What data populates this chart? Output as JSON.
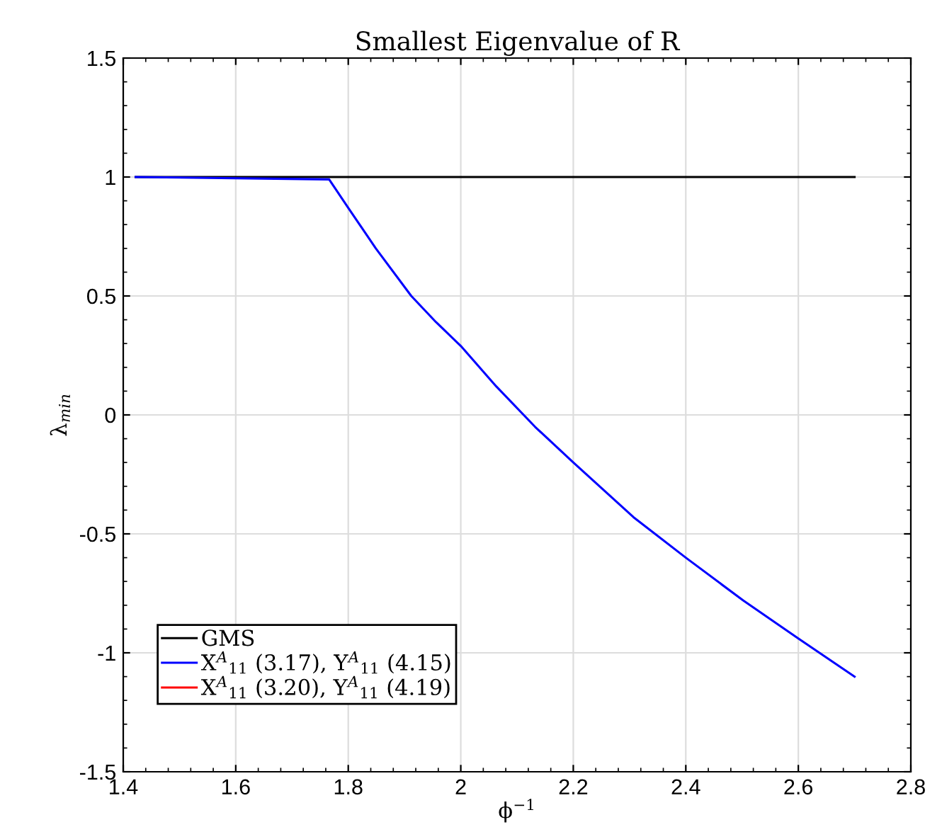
{
  "chart_data": {
    "type": "line",
    "title": "Smallest Eigenvalue of R",
    "xlabel": "ϕ$^{−1}$",
    "ylabel": "λ$_{min}$",
    "xlim": [
      1.4,
      2.8
    ],
    "xticks": [
      1.4,
      1.6,
      1.8,
      {
        "value": 2.0,
        "label": "2"
      },
      2.2,
      2.4,
      2.6,
      2.8
    ],
    "ylim": [
      -1.5,
      1.5
    ],
    "yticks": [
      -1.5,
      {
        "value": -1.0,
        "label": "-1"
      },
      -0.5,
      {
        "value": 0.0,
        "label": "0"
      },
      0.5,
      {
        "value": 1.0,
        "label": "1"
      },
      1.5
    ],
    "grid": true,
    "legend": "bottom left",
    "line_style": "solid",
    "marker": "none",
    "series": [
      {
        "name": "GMS",
        "color": "#000000",
        "x": [
          1.422,
          2.7
        ],
        "values": [
          1,
          1
        ]
      },
      {
        "name": "X$^{A}$$_{11}$ (3.17), Y$^{A}$$_{11}$ (4.15)",
        "color": "#0000ff",
        "x": [
          1.422,
          1.766,
          1.8,
          1.849,
          1.912,
          1.956,
          2.0,
          2.063,
          2.132,
          2.2,
          2.307,
          2.4,
          2.502,
          2.6,
          2.7
        ],
        "values": [
          1,
          0.99,
          0.87,
          0.7,
          0.5,
          0.39,
          0.29,
          0.12,
          -0.05,
          -0.2,
          -0.43,
          -0.6,
          -0.78,
          -0.94,
          -1.1
        ]
      },
      {
        "name": "X$^{A}$$_{11}$ (3.20), Y$^{A}$$_{11}$ (4.19)",
        "color": "#ff0000"
      }
    ]
  }
}
